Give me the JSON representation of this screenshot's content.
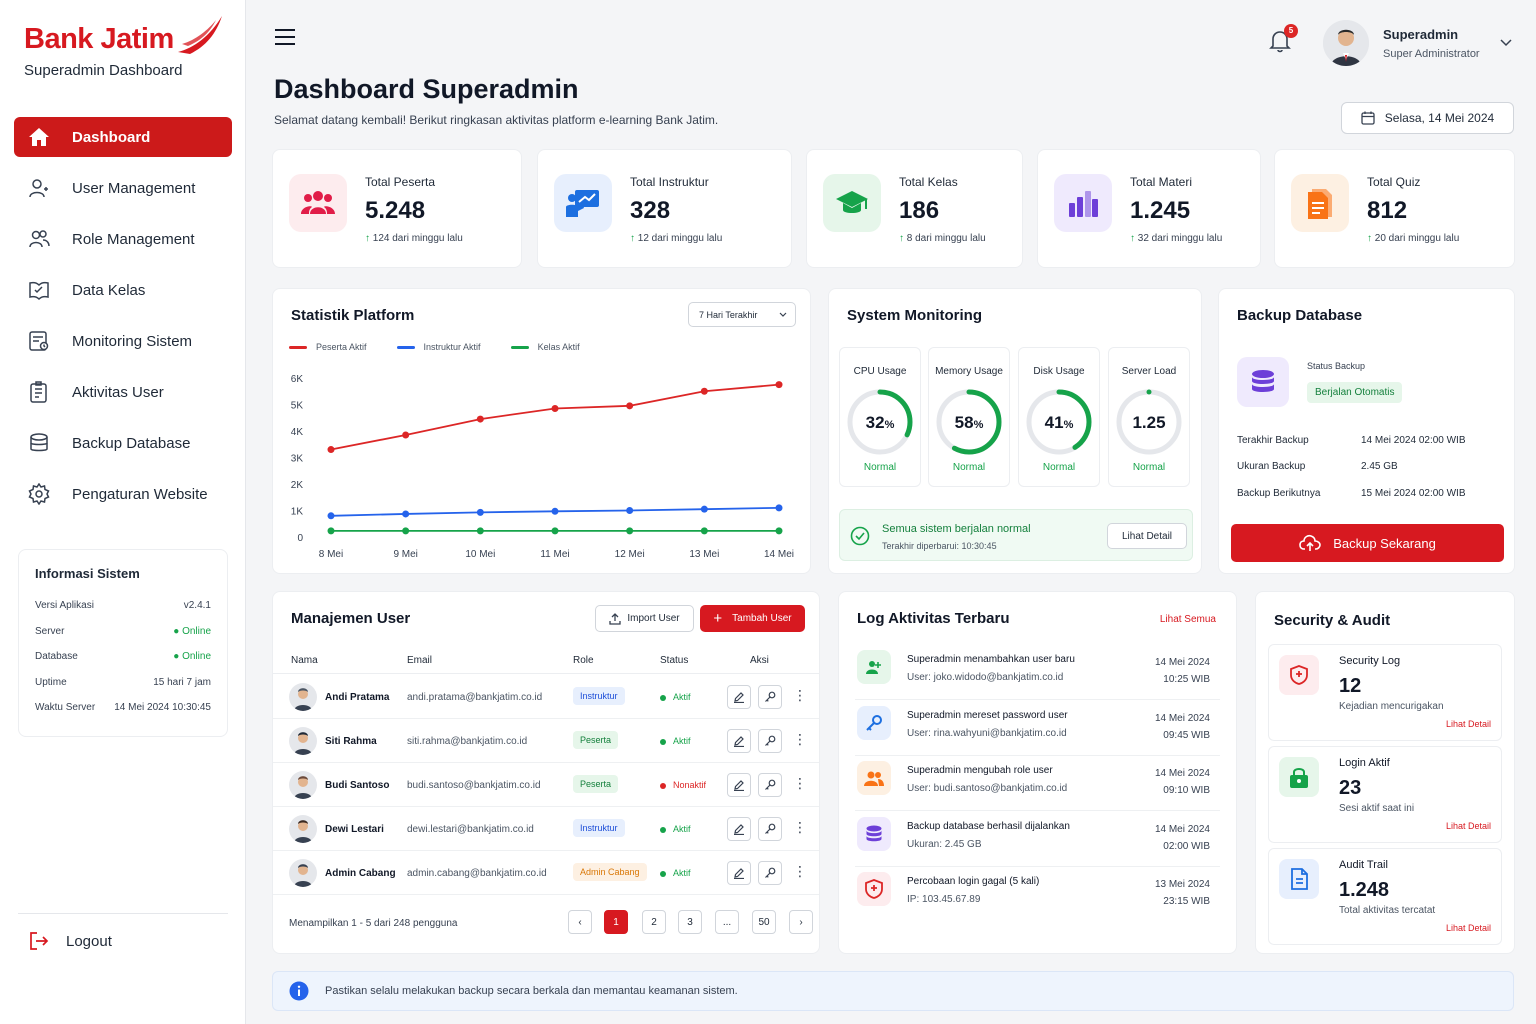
{
  "brand": {
    "name": "Bank Jatim",
    "subtitle": "Superadmin Dashboard"
  },
  "nav": [
    {
      "label": "Dashboard",
      "icon": "home-icon",
      "active": true
    },
    {
      "label": "User Management",
      "icon": "user-icon"
    },
    {
      "label": "Role Management",
      "icon": "users-icon"
    },
    {
      "label": "Data Kelas",
      "icon": "book-icon"
    },
    {
      "label": "Monitoring Sistem",
      "icon": "monitor-icon"
    },
    {
      "label": "Aktivitas User",
      "icon": "clipboard-icon"
    },
    {
      "label": "Backup Database",
      "icon": "database-icon"
    },
    {
      "label": "Pengaturan Website",
      "icon": "gear-icon"
    }
  ],
  "system_info": {
    "title": "Informasi Sistem",
    "rows": [
      {
        "label": "Versi Aplikasi",
        "value": "v2.4.1"
      },
      {
        "label": "Server",
        "value": "Online"
      },
      {
        "label": "Database",
        "value": "Online"
      },
      {
        "label": "Uptime",
        "value": "15 hari 7 jam"
      },
      {
        "label": "Waktu Server",
        "value": "14 Mei 2024 10:30:45"
      }
    ]
  },
  "logout_label": "Logout",
  "header": {
    "notif_count": "5",
    "user_name": "Superadmin",
    "user_role": "Super Administrator"
  },
  "page": {
    "title": "Dashboard Superadmin",
    "subtitle": "Selamat datang kembali! Berikut ringkasan aktivitas platform e-learning Bank Jatim.",
    "date": "Selasa, 14 Mei 2024"
  },
  "stats": [
    {
      "label": "Total Peserta",
      "value": "5.248",
      "delta": "124 dari minggu lalu",
      "color": "#e11d48",
      "bg": "#fdecee",
      "icon": "users-group-icon"
    },
    {
      "label": "Total Instruktur",
      "value": "328",
      "delta": "12 dari minggu lalu",
      "color": "#1d6fe0",
      "bg": "#e7effd",
      "icon": "presenter-icon"
    },
    {
      "label": "Total Kelas",
      "value": "186",
      "delta": "8 dari minggu lalu",
      "color": "#16a34a",
      "bg": "#e6f6ea",
      "icon": "graduation-cap-icon"
    },
    {
      "label": "Total Materi",
      "value": "1.245",
      "delta": "32 dari minggu lalu",
      "color": "#6d3fd8",
      "bg": "#efeafd",
      "icon": "bar-chart-icon"
    },
    {
      "label": "Total Quiz",
      "value": "812",
      "delta": "20 dari minggu lalu",
      "color": "#f97316",
      "bg": "#fdf0e2",
      "icon": "quiz-doc-icon"
    }
  ],
  "stats_panel": {
    "title": "Statistik Platform",
    "range": "7 Hari Terakhir"
  },
  "chart_data": {
    "type": "line",
    "categories": [
      "8 Mei",
      "9 Mei",
      "10 Mei",
      "11 Mei",
      "12 Mei",
      "13 Mei",
      "14 Mei"
    ],
    "y_ticks": [
      "0",
      "1K",
      "2K",
      "3K",
      "4K",
      "5K",
      "6K"
    ],
    "ylim": [
      0,
      6000
    ],
    "legend": "top-left",
    "grid": false,
    "series": [
      {
        "name": "Peserta Aktif",
        "color": "#dc2626",
        "values": [
          3300,
          3850,
          4450,
          4850,
          4950,
          5500,
          5750
        ]
      },
      {
        "name": "Instruktur Aktif",
        "color": "#2563eb",
        "values": [
          800,
          870,
          930,
          970,
          1000,
          1050,
          1100
        ]
      },
      {
        "name": "Kelas Aktif",
        "color": "#16a34a",
        "values": [
          230,
          230,
          230,
          230,
          230,
          230,
          230
        ]
      }
    ]
  },
  "monitoring": {
    "title": "System Monitoring",
    "gauges": [
      {
        "label": "CPU Usage",
        "value": "32",
        "unit": "%",
        "fraction": 0.32,
        "status": "Normal"
      },
      {
        "label": "Memory Usage",
        "value": "58",
        "unit": "%",
        "fraction": 0.58,
        "status": "Normal"
      },
      {
        "label": "Disk Usage",
        "value": "41",
        "unit": "%",
        "fraction": 0.41,
        "status": "Normal"
      },
      {
        "label": "Server Load",
        "value": "1.25",
        "unit": "",
        "fraction": 0.0,
        "status": "Normal"
      }
    ],
    "ok_title": "Semua sistem berjalan normal",
    "ok_sub": "Terakhir diperbarui: 10:30:45",
    "detail_btn": "Lihat Detail"
  },
  "backup": {
    "title": "Backup Database",
    "status_label": "Status Backup",
    "status_value": "Berjalan Otomatis",
    "rows": [
      {
        "label": "Terakhir Backup",
        "value": "14 Mei 2024 02:00 WIB"
      },
      {
        "label": "Ukuran Backup",
        "value": "2.45 GB"
      },
      {
        "label": "Backup Berikutnya",
        "value": "15 Mei 2024 02:00 WIB"
      }
    ],
    "button": "Backup Sekarang"
  },
  "users": {
    "title": "Manajemen User",
    "import_btn": "Import User",
    "add_btn": "Tambah User",
    "columns": [
      "Nama",
      "Email",
      "Role",
      "Status",
      "Aksi"
    ],
    "rows": [
      {
        "name": "Andi Pratama",
        "email": "andi.pratama@bankjatim.co.id",
        "role": "Instruktur",
        "role_type": "ins",
        "status": "Aktif",
        "active": true
      },
      {
        "name": "Siti Rahma",
        "email": "siti.rahma@bankjatim.co.id",
        "role": "Peserta",
        "role_type": "pes",
        "status": "Aktif",
        "active": true
      },
      {
        "name": "Budi Santoso",
        "email": "budi.santoso@bankjatim.co.id",
        "role": "Peserta",
        "role_type": "pes",
        "status": "Nonaktif",
        "active": false
      },
      {
        "name": "Dewi Lestari",
        "email": "dewi.lestari@bankjatim.co.id",
        "role": "Instruktur",
        "role_type": "ins",
        "status": "Aktif",
        "active": true
      },
      {
        "name": "Admin Cabang",
        "email": "admin.cabang@bankjatim.co.id",
        "role": "Admin Cabang",
        "role_type": "adm",
        "status": "Aktif",
        "active": true
      }
    ],
    "summary": "Menampilkan 1 - 5 dari 248 pengguna",
    "pages": [
      "1",
      "2",
      "3",
      "...",
      "50"
    ]
  },
  "log": {
    "title": "Log Aktivitas Terbaru",
    "see_all": "Lihat Semua",
    "items": [
      {
        "title": "Superadmin menambahkan user baru",
        "sub": "User: joko.widodo@bankjatim.co.id",
        "date": "14 Mei 2024",
        "time": "10:25 WIB",
        "icon": "user-add-icon",
        "color": "#16a34a",
        "bg": "#e6f6ea"
      },
      {
        "title": "Superadmin mereset password user",
        "sub": "User: rina.wahyuni@bankjatim.co.id",
        "date": "14 Mei 2024",
        "time": "09:45 WIB",
        "icon": "key-icon",
        "color": "#1d6fe0",
        "bg": "#e7effd"
      },
      {
        "title": "Superadmin mengubah role user",
        "sub": "User: budi.santoso@bankjatim.co.id",
        "date": "14 Mei 2024",
        "time": "09:10 WIB",
        "icon": "users-icon",
        "color": "#f97316",
        "bg": "#fdf0e2"
      },
      {
        "title": "Backup database berhasil dijalankan",
        "sub": "Ukuran: 2.45 GB",
        "date": "14 Mei 2024",
        "time": "02:00 WIB",
        "icon": "database-icon",
        "color": "#6d3fd8",
        "bg": "#efeafd"
      },
      {
        "title": "Percobaan login gagal (5 kali)",
        "sub": "IP: 103.45.67.89",
        "date": "13 Mei 2024",
        "time": "23:15 WIB",
        "icon": "shield-alert-icon",
        "color": "#dc2626",
        "bg": "#fdecee"
      }
    ]
  },
  "security": {
    "title": "Security & Audit",
    "items": [
      {
        "title": "Security Log",
        "value": "12",
        "sub": "Kejadian mencurigakan",
        "link": "Lihat Detail",
        "icon": "shield-alert-icon",
        "color": "#dc2626",
        "bg": "#fdecee"
      },
      {
        "title": "Login Aktif",
        "value": "23",
        "sub": "Sesi aktif saat ini",
        "link": "Lihat Detail",
        "icon": "lock-icon",
        "color": "#16a34a",
        "bg": "#e6f6ea"
      },
      {
        "title": "Audit Trail",
        "value": "1.248",
        "sub": "Total aktivitas tercatat",
        "link": "Lihat Detail",
        "icon": "document-icon",
        "color": "#1d6fe0",
        "bg": "#e7effd"
      }
    ]
  },
  "notice": "Pastikan selalu melakukan backup secara berkala dan memantau keamanan sistem."
}
